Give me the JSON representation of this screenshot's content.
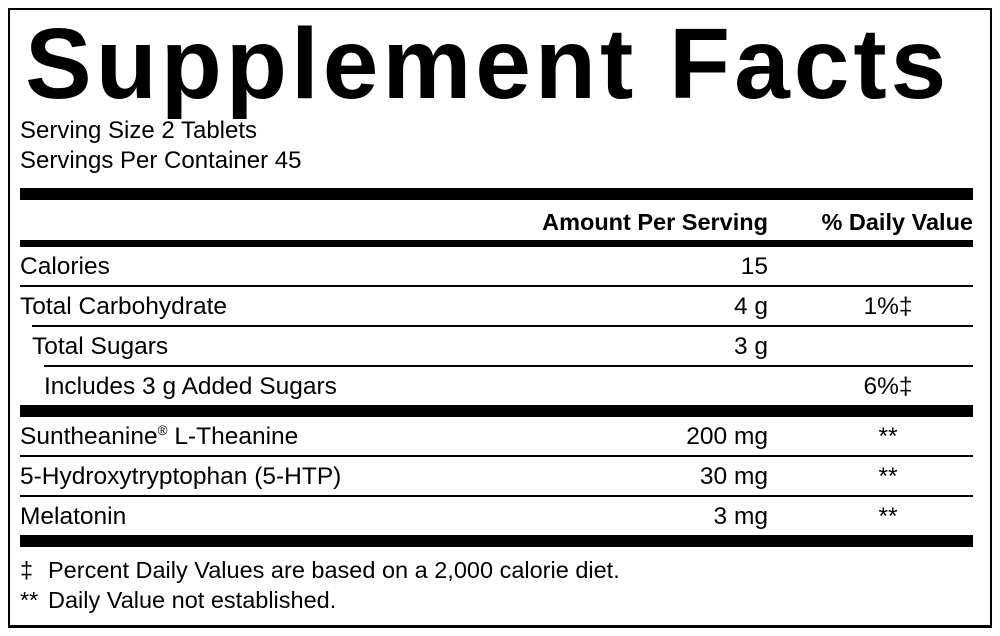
{
  "label": {
    "title": "Supplement Facts",
    "serving_size": "Serving Size 2 Tablets",
    "servings_per_container": "Servings Per Container 45",
    "columns": {
      "amount_header": "Amount Per Serving",
      "dv_header": "% Daily Value"
    },
    "nutrient_rows": [
      {
        "name": "Calories",
        "amount": "15",
        "dv": "",
        "indent": 0
      },
      {
        "name": "Total Carbohydrate",
        "amount": "4 g",
        "dv": "1%‡",
        "indent": 0
      },
      {
        "name": "Total Sugars",
        "amount": "3 g",
        "dv": "",
        "indent": 1
      },
      {
        "name": "Includes 3 g Added Sugars",
        "amount": "",
        "dv": "6%‡",
        "indent": 2
      }
    ],
    "ingredient_rows": [
      {
        "name": "Suntheanine® L-Theanine",
        "amount": "200 mg",
        "dv": "**",
        "indent": 0
      },
      {
        "name": "5-Hydroxytryptophan (5-HTP)",
        "amount": "30 mg",
        "dv": "**",
        "indent": 0
      },
      {
        "name": "Melatonin",
        "amount": "3 mg",
        "dv": "**",
        "indent": 0
      }
    ],
    "footnotes": [
      {
        "symbol": "‡",
        "text": "Percent Daily Values are based on a 2,000 calorie diet."
      },
      {
        "symbol": "**",
        "text": "Daily Value not established."
      }
    ],
    "colors": {
      "ink": "#000000",
      "paper": "#ffffff"
    }
  }
}
